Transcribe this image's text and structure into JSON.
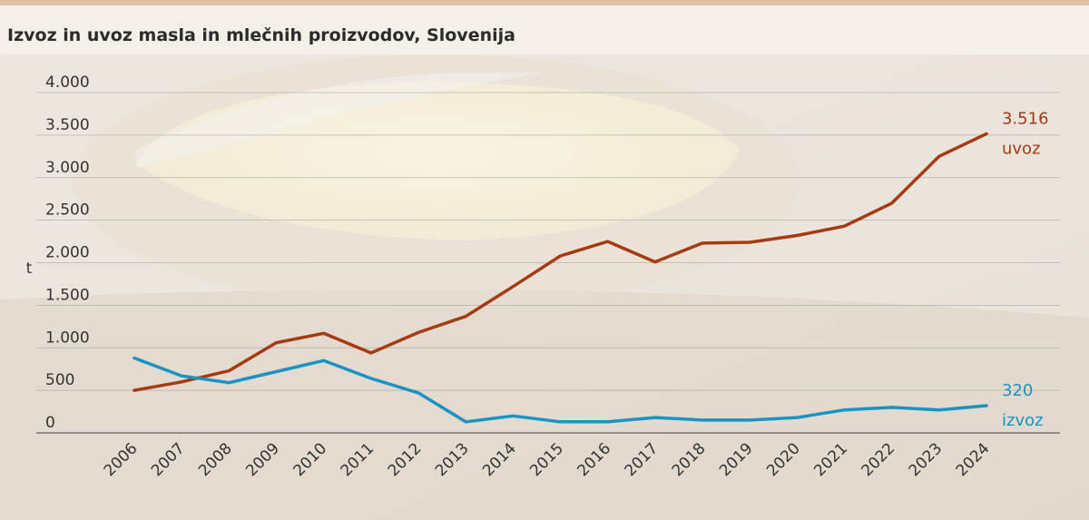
{
  "chart_data": {
    "type": "line",
    "title": "Izvoz in uvoz masla in mlečnih proizvodov, Slovenija",
    "ylabel": "t",
    "xlabel": "",
    "ylim": [
      0,
      4000
    ],
    "yticks": [
      0,
      500,
      1000,
      1500,
      2000,
      2500,
      3000,
      3500,
      4000
    ],
    "ytick_labels": [
      "0",
      "500",
      "1.000",
      "1.500",
      "2.000",
      "2.500",
      "3.000",
      "3.500",
      "4.000"
    ],
    "categories": [
      "2006",
      "2007",
      "2008",
      "2009",
      "2010",
      "2011",
      "2012",
      "2013",
      "2014",
      "2015",
      "2016",
      "2017",
      "2018",
      "2019",
      "2020",
      "2021",
      "2022",
      "2023",
      "2024"
    ],
    "grid": true,
    "legend": "end-of-line labels",
    "series": [
      {
        "name": "uvoz",
        "color": "#a63a12",
        "end_label": "3.516",
        "values": [
          500,
          600,
          730,
          1060,
          1170,
          940,
          1180,
          1370,
          1720,
          2080,
          2250,
          2010,
          2230,
          2240,
          2320,
          2430,
          2700,
          3250,
          3516
        ]
      },
      {
        "name": "izvoz",
        "color": "#1a93c2",
        "end_label": "320",
        "values": [
          880,
          670,
          590,
          720,
          850,
          640,
          470,
          130,
          200,
          130,
          130,
          180,
          150,
          150,
          180,
          270,
          300,
          270,
          320
        ]
      }
    ]
  }
}
